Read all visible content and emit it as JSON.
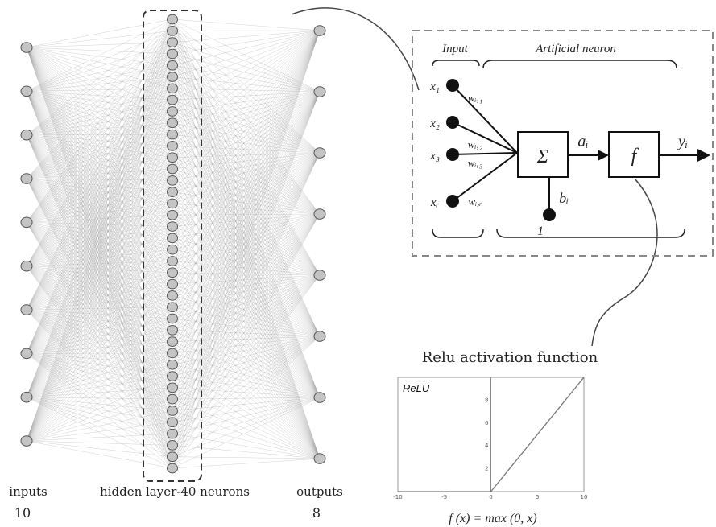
{
  "network": {
    "inputs_label": "inputs",
    "inputs_count": "10",
    "hidden_label": "hidden layer-40 neurons",
    "outputs_label": "outputs",
    "outputs_count": "8",
    "n_inputs": 10,
    "n_hidden": 40,
    "n_outputs": 8
  },
  "neuron": {
    "input_title": "Input",
    "neuron_title": "Artificial neuron",
    "x1": "x₁",
    "x2": "x₂",
    "x3": "x₃",
    "xr": "xᵣ",
    "w1": "wᵢ,₁",
    "w2": "wᵢ,₂",
    "w3": "wᵢ,₃",
    "wr": "wᵢ,ᵣ",
    "sum": "Σ",
    "ai": "aᵢ",
    "bi": "bᵢ",
    "one": "1",
    "f": "f",
    "yi": "yᵢ"
  },
  "relu": {
    "caption": "Relu activation function",
    "plot_label": "ReLU",
    "formula": "f (x) = max (0, x)"
  },
  "chart_data": {
    "type": "line",
    "title": "ReLU",
    "x": [
      -10,
      0,
      10
    ],
    "values": [
      0,
      0,
      10
    ],
    "xlim": [
      -10,
      10
    ],
    "ylim": [
      0,
      10
    ],
    "xticks": [
      "-10",
      "-5",
      "0",
      "5",
      "10"
    ],
    "yticks": [
      "2",
      "4",
      "6",
      "8"
    ]
  }
}
